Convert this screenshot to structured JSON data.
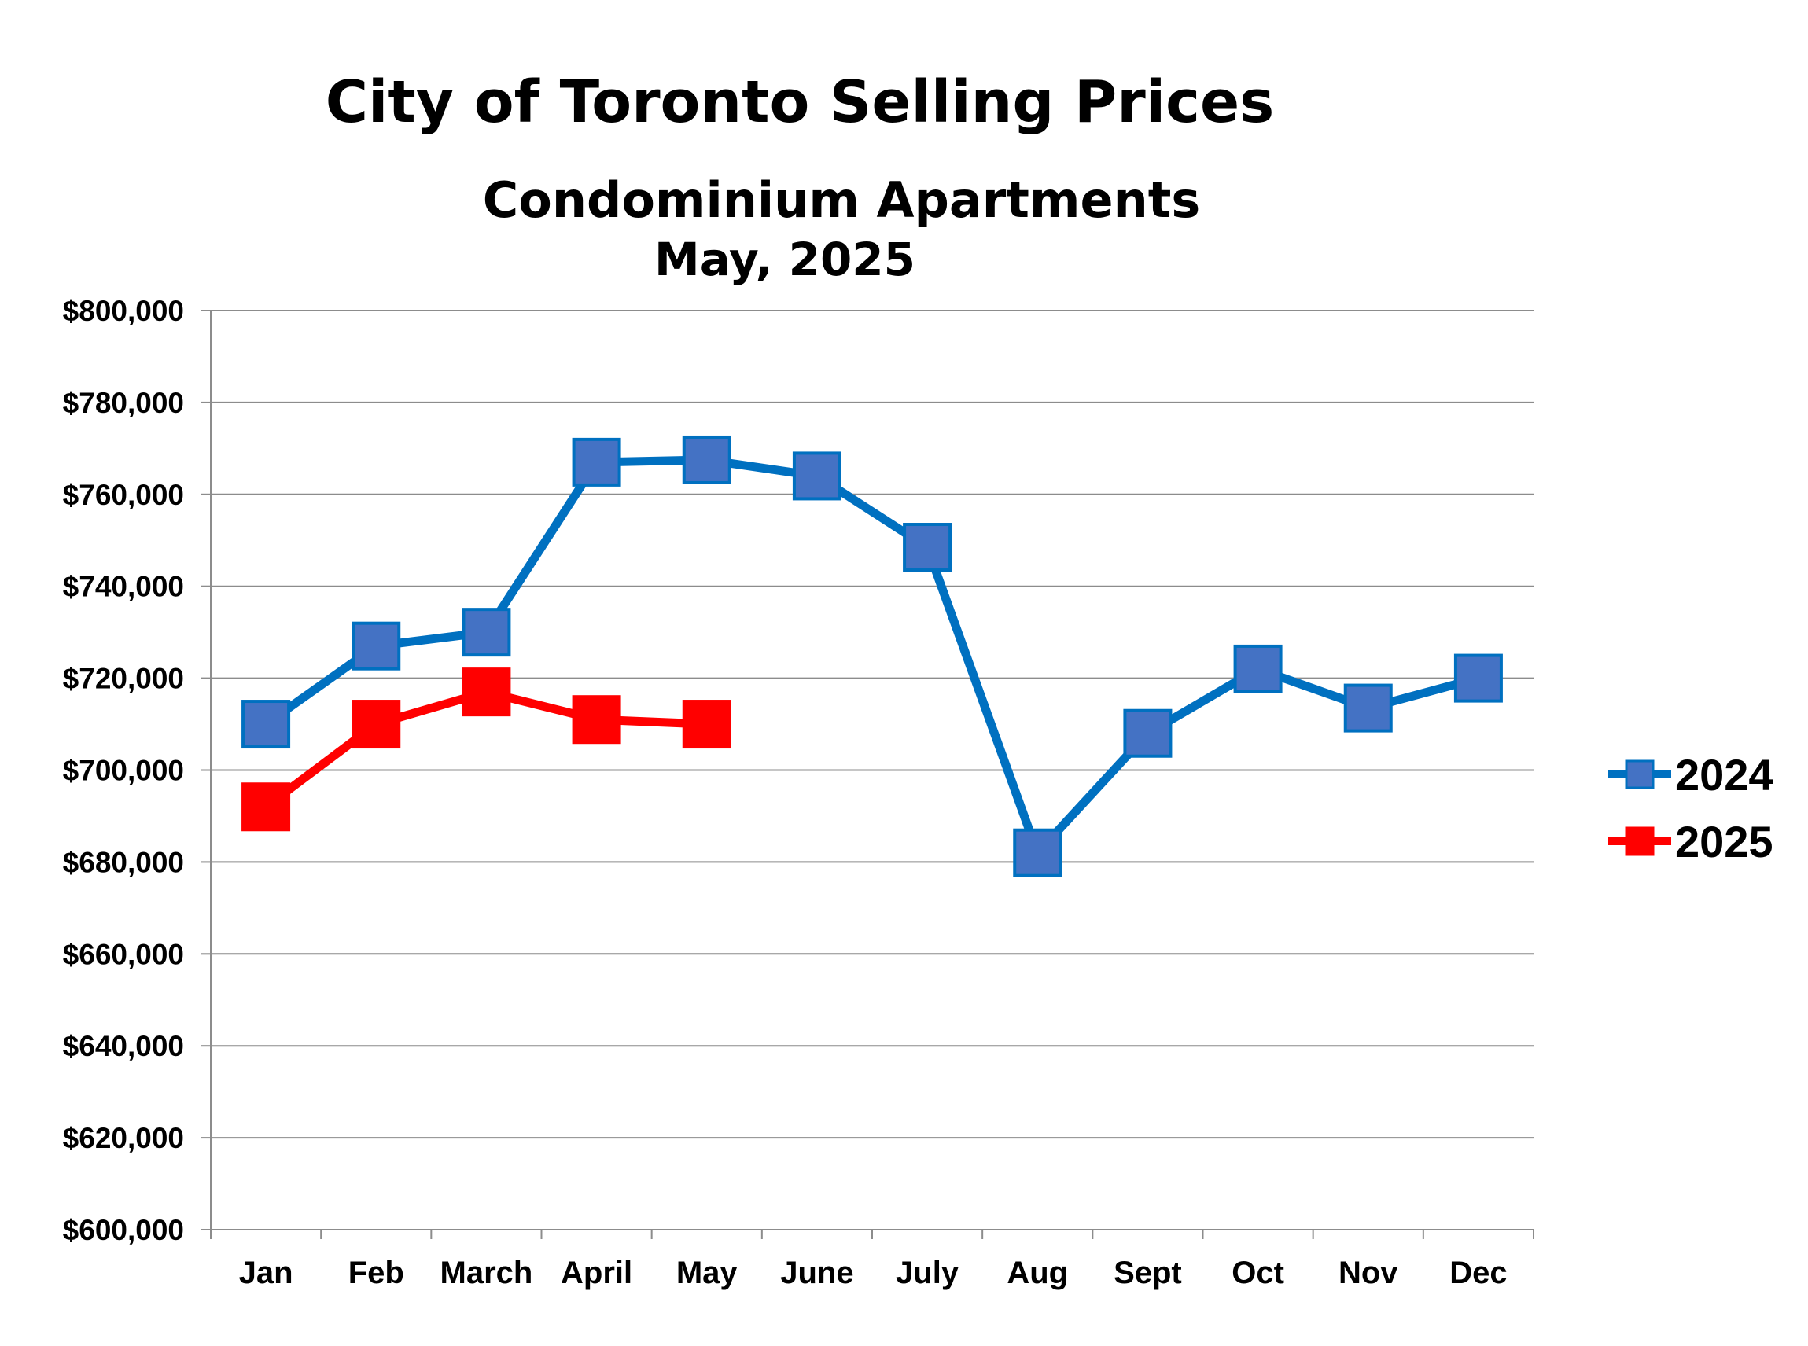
{
  "chart_data": {
    "type": "line",
    "title": "City of Toronto Selling Prices",
    "subtitle": "Condominium Apartments",
    "subtitle2": "May, 2025",
    "xlabel": "",
    "ylabel": "",
    "categories": [
      "Jan",
      "Feb",
      "March",
      "April",
      "May",
      "June",
      "July",
      "Aug",
      "Sept",
      "Oct",
      "Nov",
      "Dec"
    ],
    "ylim": [
      600000,
      800000
    ],
    "ytick_step": 20000,
    "y_tick_labels": [
      "$600,000",
      "$620,000",
      "$640,000",
      "$660,000",
      "$680,000",
      "$700,000",
      "$720,000",
      "$740,000",
      "$760,000",
      "$780,000",
      "$800,000"
    ],
    "grid": true,
    "legend_position": "right",
    "series": [
      {
        "name": "2024",
        "color": "#0070c0",
        "marker_color": "#4472c4",
        "values": [
          710000,
          727000,
          730000,
          767000,
          767500,
          764000,
          748500,
          682000,
          708000,
          722000,
          713500,
          720000
        ]
      },
      {
        "name": "2025",
        "color": "#ff0000",
        "marker_color": "#ff0000",
        "values": [
          692000,
          710000,
          717000,
          711000,
          710000,
          null,
          null,
          null,
          null,
          null,
          null,
          null
        ]
      }
    ]
  }
}
